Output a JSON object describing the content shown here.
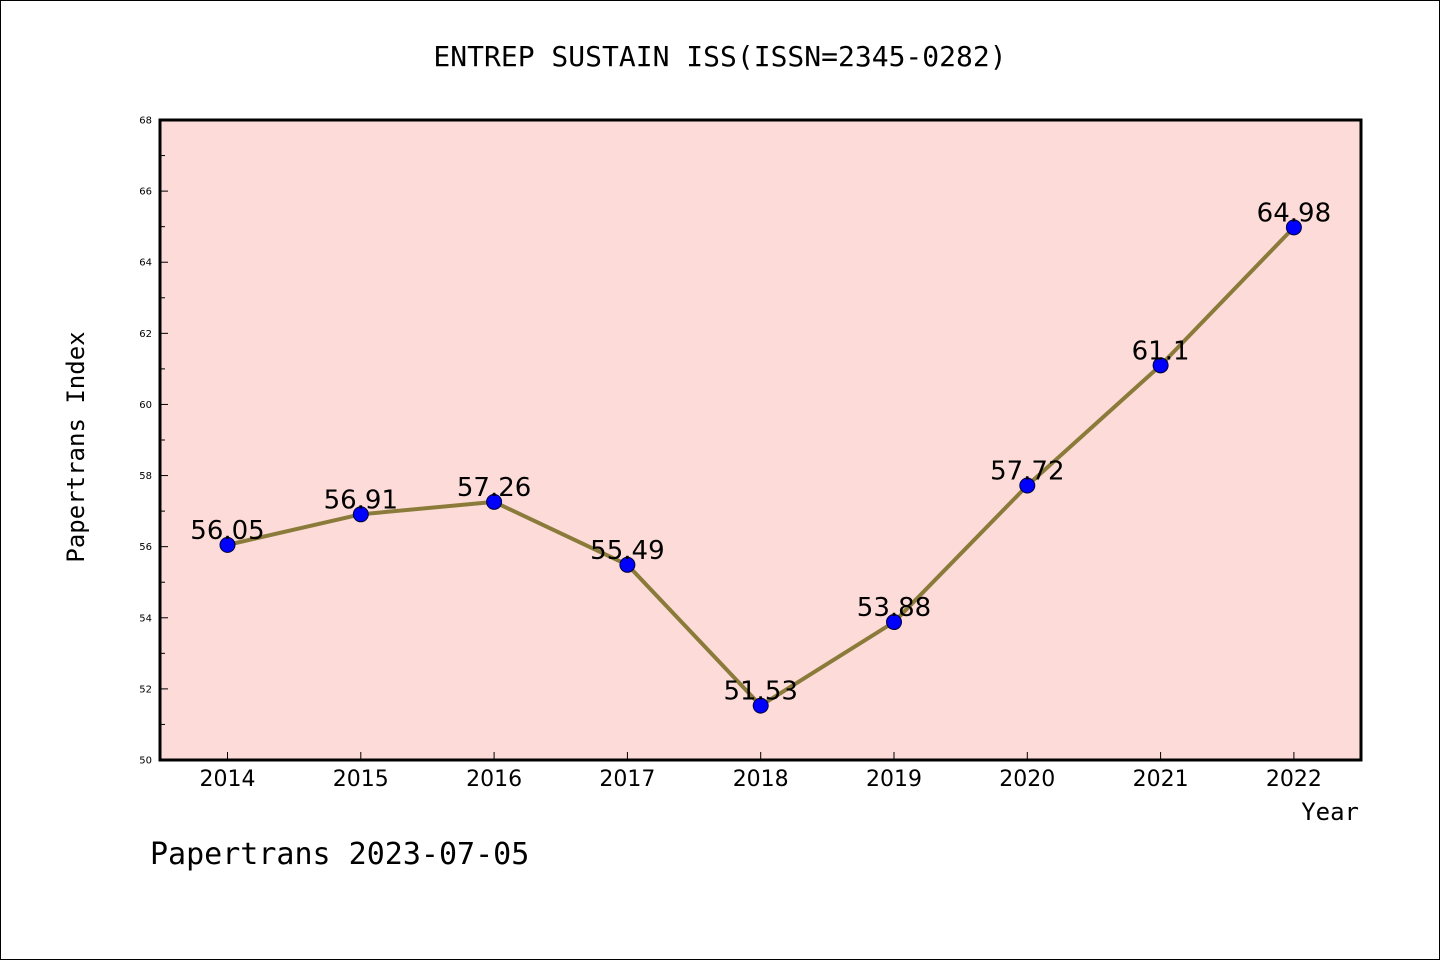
{
  "chart_data": {
    "type": "line",
    "title": "ENTREP SUSTAIN ISS(ISSN=2345-0282)",
    "xlabel": "Year",
    "ylabel": "Papertrans Index",
    "categories": [
      "2014",
      "2015",
      "2016",
      "2017",
      "2018",
      "2019",
      "2020",
      "2021",
      "2022"
    ],
    "values": [
      56.05,
      56.91,
      57.26,
      55.49,
      51.53,
      53.88,
      57.72,
      61.1,
      64.98
    ],
    "data_labels": [
      "56.05",
      "56.91",
      "57.26",
      "55.49",
      "51.53",
      "53.88",
      "57.72",
      "61.1",
      "64.98"
    ],
    "ylim": [
      50,
      68
    ],
    "yticks": [
      "50",
      "52",
      "54",
      "56",
      "58",
      "60",
      "62",
      "64",
      "66",
      "68"
    ],
    "grid": false,
    "colors": {
      "plot_background": "#fddbd8",
      "line": "#8b7b3a",
      "marker": "#0000ff"
    }
  },
  "footer": {
    "watermark": "Papertrans 2023-07-05"
  }
}
